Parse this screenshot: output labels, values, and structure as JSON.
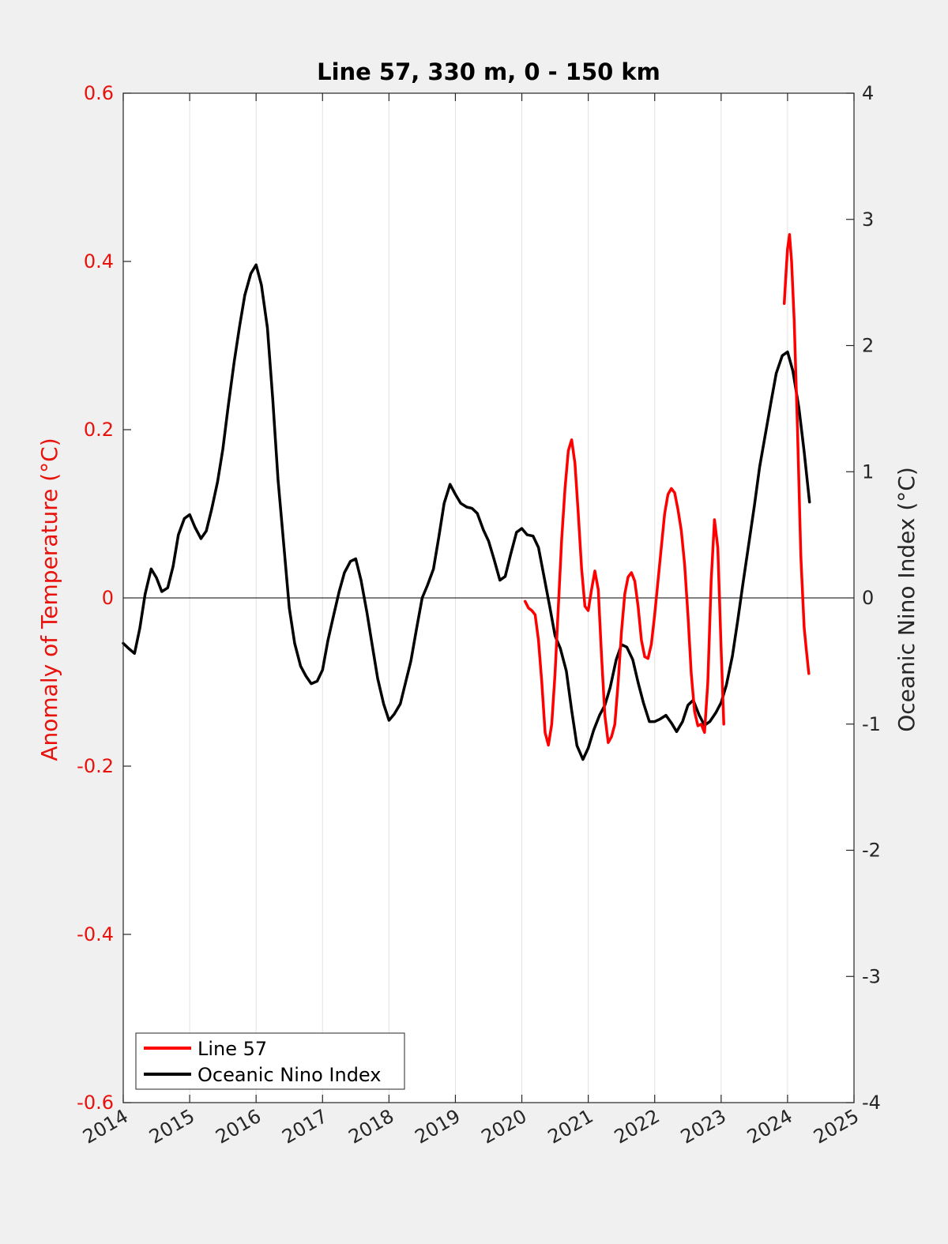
{
  "chart_data": {
    "type": "line",
    "title": "Line 57, 330 m, 0 - 150 km",
    "xlabel": "",
    "ylabel": "Anomaly of Temperature (°C)",
    "y2label": "Oceanic Nino Index (°C)",
    "xlim": [
      2014,
      2025
    ],
    "ylim": [
      -0.6,
      0.6
    ],
    "y2lim": [
      -4,
      4
    ],
    "x_ticks": [
      "2014",
      "2015",
      "2016",
      "2017",
      "2018",
      "2019",
      "2020",
      "2021",
      "2022",
      "2023",
      "2024",
      "2025"
    ],
    "y_ticks": [
      "-0.6",
      "-0.4",
      "-0.2",
      "0",
      "0.2",
      "0.4",
      "0.6"
    ],
    "y2_ticks": [
      "-4",
      "-3",
      "-2",
      "-1",
      "0",
      "1",
      "2",
      "3",
      "4"
    ],
    "grid": "vertical",
    "legend_position": "bottom-left",
    "colors": {
      "left_axis": "#e8120c",
      "right_axis": "#000000"
    },
    "series": [
      {
        "name": "Line 57",
        "axis": "left",
        "color": "#ff0000",
        "segments": [
          [
            [
              2020.05,
              -0.004
            ],
            [
              2020.1,
              -0.012
            ],
            [
              2020.15,
              -0.015
            ],
            [
              2020.2,
              -0.02
            ],
            [
              2020.25,
              -0.05
            ],
            [
              2020.3,
              -0.1
            ],
            [
              2020.35,
              -0.16
            ],
            [
              2020.4,
              -0.175
            ],
            [
              2020.45,
              -0.15
            ],
            [
              2020.5,
              -0.09
            ],
            [
              2020.55,
              -0.01
            ],
            [
              2020.6,
              0.07
            ],
            [
              2020.65,
              0.13
            ],
            [
              2020.7,
              0.175
            ],
            [
              2020.75,
              0.188
            ],
            [
              2020.8,
              0.16
            ],
            [
              2020.85,
              0.1
            ],
            [
              2020.9,
              0.035
            ],
            [
              2020.95,
              -0.01
            ],
            [
              2021.0,
              -0.015
            ],
            [
              2021.05,
              0.01
            ],
            [
              2021.1,
              0.032
            ],
            [
              2021.15,
              0.01
            ],
            [
              2021.2,
              -0.07
            ],
            [
              2021.25,
              -0.14
            ],
            [
              2021.3,
              -0.172
            ],
            [
              2021.35,
              -0.165
            ],
            [
              2021.4,
              -0.15
            ],
            [
              2021.45,
              -0.1
            ],
            [
              2021.5,
              -0.04
            ],
            [
              2021.55,
              0.005
            ],
            [
              2021.6,
              0.025
            ],
            [
              2021.65,
              0.03
            ],
            [
              2021.7,
              0.02
            ],
            [
              2021.75,
              -0.01
            ],
            [
              2021.8,
              -0.05
            ],
            [
              2021.85,
              -0.07
            ],
            [
              2021.9,
              -0.072
            ],
            [
              2021.95,
              -0.055
            ],
            [
              2022.0,
              -0.02
            ],
            [
              2022.05,
              0.02
            ],
            [
              2022.1,
              0.06
            ],
            [
              2022.15,
              0.1
            ],
            [
              2022.2,
              0.123
            ],
            [
              2022.25,
              0.13
            ],
            [
              2022.3,
              0.125
            ],
            [
              2022.35,
              0.105
            ],
            [
              2022.4,
              0.08
            ],
            [
              2022.45,
              0.04
            ],
            [
              2022.5,
              -0.02
            ],
            [
              2022.55,
              -0.09
            ],
            [
              2022.6,
              -0.135
            ],
            [
              2022.65,
              -0.152
            ],
            [
              2022.7,
              -0.15
            ],
            [
              2022.75,
              -0.16
            ],
            [
              2022.8,
              -0.1
            ],
            [
              2022.85,
              0.02
            ],
            [
              2022.9,
              0.093
            ],
            [
              2022.95,
              0.06
            ],
            [
              2023.0,
              -0.06
            ],
            [
              2023.04,
              -0.15
            ]
          ],
          [
            [
              2023.95,
              0.35
            ],
            [
              2023.98,
              0.39
            ],
            [
              2024.0,
              0.415
            ],
            [
              2024.03,
              0.432
            ],
            [
              2024.06,
              0.4
            ],
            [
              2024.1,
              0.33
            ],
            [
              2024.15,
              0.2
            ],
            [
              2024.2,
              0.05
            ],
            [
              2024.25,
              -0.035
            ],
            [
              2024.28,
              -0.06
            ],
            [
              2024.32,
              -0.09
            ]
          ]
        ]
      },
      {
        "name": "Oceanic Nino Index",
        "axis": "right",
        "color": "#000000",
        "points": [
          [
            2014.0,
            -0.36
          ],
          [
            2014.08,
            -0.4
          ],
          [
            2014.17,
            -0.44
          ],
          [
            2014.25,
            -0.24
          ],
          [
            2014.33,
            0.03
          ],
          [
            2014.42,
            0.23
          ],
          [
            2014.5,
            0.16
          ],
          [
            2014.58,
            0.05
          ],
          [
            2014.67,
            0.08
          ],
          [
            2014.75,
            0.25
          ],
          [
            2014.83,
            0.5
          ],
          [
            2014.92,
            0.63
          ],
          [
            2015.0,
            0.66
          ],
          [
            2015.08,
            0.56
          ],
          [
            2015.17,
            0.47
          ],
          [
            2015.25,
            0.53
          ],
          [
            2015.33,
            0.7
          ],
          [
            2015.42,
            0.92
          ],
          [
            2015.5,
            1.18
          ],
          [
            2015.58,
            1.52
          ],
          [
            2015.67,
            1.87
          ],
          [
            2015.75,
            2.15
          ],
          [
            2015.83,
            2.4
          ],
          [
            2015.92,
            2.57
          ],
          [
            2016.0,
            2.64
          ],
          [
            2016.08,
            2.48
          ],
          [
            2016.17,
            2.14
          ],
          [
            2016.25,
            1.58
          ],
          [
            2016.33,
            0.94
          ],
          [
            2016.42,
            0.4
          ],
          [
            2016.5,
            -0.08
          ],
          [
            2016.58,
            -0.36
          ],
          [
            2016.67,
            -0.54
          ],
          [
            2016.75,
            -0.62
          ],
          [
            2016.83,
            -0.68
          ],
          [
            2016.92,
            -0.66
          ],
          [
            2017.0,
            -0.57
          ],
          [
            2017.08,
            -0.34
          ],
          [
            2017.17,
            -0.13
          ],
          [
            2017.25,
            0.05
          ],
          [
            2017.33,
            0.2
          ],
          [
            2017.42,
            0.29
          ],
          [
            2017.5,
            0.31
          ],
          [
            2017.58,
            0.14
          ],
          [
            2017.67,
            -0.12
          ],
          [
            2017.75,
            -0.38
          ],
          [
            2017.83,
            -0.64
          ],
          [
            2017.92,
            -0.84
          ],
          [
            2018.0,
            -0.97
          ],
          [
            2018.08,
            -0.92
          ],
          [
            2018.17,
            -0.84
          ],
          [
            2018.25,
            -0.67
          ],
          [
            2018.33,
            -0.5
          ],
          [
            2018.42,
            -0.23
          ],
          [
            2018.5,
            0.0
          ],
          [
            2018.58,
            0.1
          ],
          [
            2018.67,
            0.23
          ],
          [
            2018.75,
            0.48
          ],
          [
            2018.83,
            0.75
          ],
          [
            2018.92,
            0.9
          ],
          [
            2019.0,
            0.82
          ],
          [
            2019.08,
            0.75
          ],
          [
            2019.17,
            0.72
          ],
          [
            2019.25,
            0.71
          ],
          [
            2019.33,
            0.67
          ],
          [
            2019.42,
            0.54
          ],
          [
            2019.5,
            0.45
          ],
          [
            2019.58,
            0.31
          ],
          [
            2019.67,
            0.14
          ],
          [
            2019.75,
            0.17
          ],
          [
            2019.83,
            0.34
          ],
          [
            2019.92,
            0.52
          ],
          [
            2020.0,
            0.55
          ],
          [
            2020.08,
            0.5
          ],
          [
            2020.17,
            0.49
          ],
          [
            2020.25,
            0.4
          ],
          [
            2020.33,
            0.18
          ],
          [
            2020.42,
            -0.07
          ],
          [
            2020.5,
            -0.3
          ],
          [
            2020.58,
            -0.4
          ],
          [
            2020.67,
            -0.58
          ],
          [
            2020.75,
            -0.89
          ],
          [
            2020.83,
            -1.17
          ],
          [
            2020.92,
            -1.28
          ],
          [
            2021.0,
            -1.19
          ],
          [
            2021.08,
            -1.05
          ],
          [
            2021.17,
            -0.93
          ],
          [
            2021.25,
            -0.85
          ],
          [
            2021.33,
            -0.71
          ],
          [
            2021.42,
            -0.49
          ],
          [
            2021.5,
            -0.37
          ],
          [
            2021.58,
            -0.39
          ],
          [
            2021.67,
            -0.49
          ],
          [
            2021.75,
            -0.67
          ],
          [
            2021.83,
            -0.83
          ],
          [
            2021.92,
            -0.98
          ],
          [
            2022.0,
            -0.98
          ],
          [
            2022.08,
            -0.96
          ],
          [
            2022.17,
            -0.93
          ],
          [
            2022.25,
            -0.99
          ],
          [
            2022.33,
            -1.06
          ],
          [
            2022.42,
            -0.98
          ],
          [
            2022.5,
            -0.85
          ],
          [
            2022.58,
            -0.81
          ],
          [
            2022.67,
            -0.93
          ],
          [
            2022.75,
            -1.01
          ],
          [
            2022.83,
            -0.98
          ],
          [
            2022.92,
            -0.91
          ],
          [
            2023.0,
            -0.83
          ],
          [
            2023.08,
            -0.69
          ],
          [
            2023.17,
            -0.46
          ],
          [
            2023.25,
            -0.18
          ],
          [
            2023.33,
            0.12
          ],
          [
            2023.42,
            0.44
          ],
          [
            2023.5,
            0.73
          ],
          [
            2023.58,
            1.04
          ],
          [
            2023.67,
            1.31
          ],
          [
            2023.75,
            1.55
          ],
          [
            2023.83,
            1.78
          ],
          [
            2023.92,
            1.92
          ],
          [
            2024.0,
            1.95
          ],
          [
            2024.08,
            1.8
          ],
          [
            2024.17,
            1.51
          ],
          [
            2024.25,
            1.16
          ],
          [
            2024.33,
            0.76
          ]
        ]
      }
    ]
  }
}
